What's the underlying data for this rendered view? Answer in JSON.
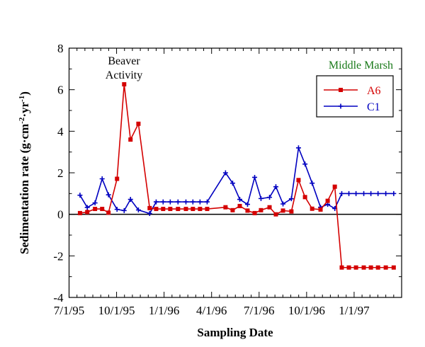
{
  "chart_data": {
    "type": "line",
    "title": "",
    "xlabel": "Sampling Date",
    "ylabel": "Sedimentation rate (g·cm⁻²·yr⁻¹)",
    "ylabel_parts": {
      "main": "Sedimentation rate (g·cm",
      "sup1": "-2",
      "mid": "·yr",
      "sup2": "-1",
      "end": ")"
    },
    "x_unit": "months since 7/1/95",
    "xlim": [
      0,
      21
    ],
    "ylim": [
      -4,
      8
    ],
    "x_ticks": [
      {
        "value": 0,
        "label": "7/1/95"
      },
      {
        "value": 3,
        "label": "10/1/95"
      },
      {
        "value": 6,
        "label": "1/1/96"
      },
      {
        "value": 9,
        "label": "4/1/96"
      },
      {
        "value": 12,
        "label": "7/1/96"
      },
      {
        "value": 15,
        "label": "10/1/96"
      },
      {
        "value": 18,
        "label": "1/1/97"
      }
    ],
    "y_ticks": [
      8,
      6,
      4,
      2,
      0,
      -2,
      -4
    ],
    "annotations": {
      "beaver_line1": "Beaver",
      "beaver_line2": "Activity",
      "site": "Middle Marsh"
    },
    "legend_placement": "top-right",
    "x": [
      0.69,
      1.15,
      1.64,
      2.09,
      2.49,
      3.03,
      3.48,
      3.88,
      4.38,
      5.09,
      5.5,
      5.94,
      6.39,
      6.88,
      7.38,
      7.82,
      8.27,
      8.72,
      9.88,
      10.33,
      10.78,
      11.27,
      11.72,
      12.12,
      12.66,
      13.06,
      13.51,
      14.04,
      14.49,
      14.9,
      15.35,
      15.88,
      16.33,
      16.78,
      17.22,
      17.67,
      18.12,
      18.61,
      19.06,
      19.51,
      20.0,
      20.5
    ],
    "series": [
      {
        "name": "A6",
        "color": "#d40000",
        "marker": "square",
        "values": [
          0.06,
          0.11,
          0.26,
          0.26,
          0.08,
          1.71,
          6.26,
          3.6,
          4.36,
          0.3,
          0.26,
          0.26,
          0.26,
          0.26,
          0.26,
          0.26,
          0.26,
          0.26,
          0.34,
          0.2,
          0.4,
          0.18,
          0.06,
          0.2,
          0.34,
          0.0,
          0.18,
          0.14,
          1.65,
          0.83,
          0.27,
          0.23,
          0.65,
          1.33,
          -2.56,
          -2.56,
          -2.56,
          -2.56,
          -2.56,
          -2.56,
          -2.56,
          -2.56
        ]
      },
      {
        "name": "C1",
        "color": "#0000c0",
        "marker": "plus",
        "values": [
          0.92,
          0.33,
          0.55,
          1.71,
          0.94,
          0.24,
          0.18,
          0.72,
          0.21,
          0.04,
          0.6,
          0.6,
          0.6,
          0.6,
          0.6,
          0.6,
          0.6,
          0.6,
          2.0,
          1.5,
          0.72,
          0.48,
          1.78,
          0.76,
          0.82,
          1.33,
          0.5,
          0.75,
          3.2,
          2.42,
          1.5,
          0.34,
          0.48,
          0.28,
          1.0,
          1.0,
          1.0,
          1.0,
          1.0,
          1.0,
          1.0,
          1.0
        ]
      }
    ],
    "annotation_color": "#1a7a1a"
  }
}
